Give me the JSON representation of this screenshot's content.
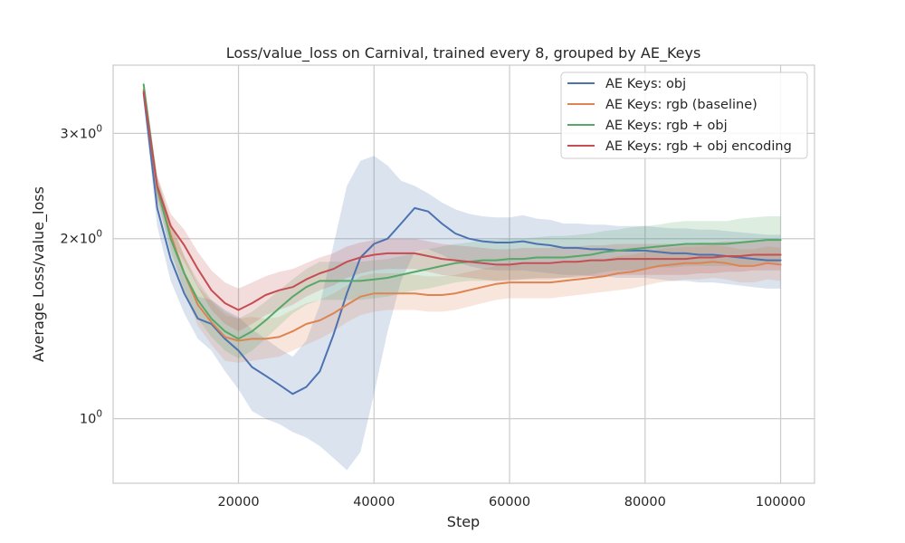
{
  "chart_data": {
    "type": "line",
    "title": "Loss/value_loss on Carnival, trained every 8, grouped by AE_Keys",
    "xlabel": "Step",
    "ylabel": "Average Loss/value_loss",
    "yscale": "log",
    "xlim": [
      1500,
      105000
    ],
    "ylim": [
      0.78,
      3.9
    ],
    "grid": true,
    "legend_position": "top-right",
    "x_ticks": [
      20000,
      40000,
      60000,
      80000,
      100000
    ],
    "x_tick_labels": [
      "20000",
      "40000",
      "60000",
      "80000",
      "100000"
    ],
    "y_ticks": [
      {
        "value": 1,
        "base": "10",
        "exp": "0"
      },
      {
        "value": 2,
        "base": "2×10",
        "exp": "0"
      },
      {
        "value": 3,
        "base": "3×10",
        "exp": "0"
      }
    ],
    "x": [
      6000,
      8000,
      10000,
      12000,
      14000,
      16000,
      18000,
      20000,
      22000,
      24000,
      26000,
      28000,
      30000,
      32000,
      34000,
      36000,
      38000,
      40000,
      42000,
      44000,
      46000,
      48000,
      50000,
      52000,
      54000,
      56000,
      58000,
      60000,
      62000,
      64000,
      66000,
      68000,
      70000,
      72000,
      74000,
      76000,
      78000,
      80000,
      82000,
      84000,
      86000,
      88000,
      90000,
      92000,
      94000,
      96000,
      98000,
      100000
    ],
    "series": [
      {
        "name": "AE Keys: obj",
        "color": "#4c72b0",
        "values": [
          3.5,
          2.25,
          1.85,
          1.62,
          1.47,
          1.44,
          1.36,
          1.3,
          1.22,
          1.18,
          1.14,
          1.1,
          1.13,
          1.2,
          1.38,
          1.62,
          1.86,
          1.96,
          2.0,
          2.12,
          2.25,
          2.22,
          2.12,
          2.04,
          2.0,
          1.98,
          1.97,
          1.97,
          1.98,
          1.96,
          1.95,
          1.93,
          1.93,
          1.92,
          1.92,
          1.91,
          1.91,
          1.91,
          1.9,
          1.89,
          1.89,
          1.88,
          1.88,
          1.87,
          1.86,
          1.85,
          1.84,
          1.84
        ],
        "lower": [
          3.4,
          2.1,
          1.7,
          1.5,
          1.36,
          1.3,
          1.2,
          1.12,
          1.03,
          1.0,
          0.98,
          0.95,
          0.93,
          0.9,
          0.86,
          0.82,
          0.88,
          1.1,
          1.4,
          1.7,
          1.9,
          1.92,
          1.88,
          1.83,
          1.8,
          1.78,
          1.77,
          1.77,
          1.77,
          1.76,
          1.75,
          1.74,
          1.74,
          1.73,
          1.73,
          1.72,
          1.72,
          1.72,
          1.71,
          1.7,
          1.7,
          1.69,
          1.69,
          1.68,
          1.67,
          1.66,
          1.65,
          1.65
        ],
        "upper": [
          3.6,
          2.4,
          2.0,
          1.75,
          1.6,
          1.58,
          1.52,
          1.48,
          1.41,
          1.36,
          1.31,
          1.27,
          1.35,
          1.55,
          1.95,
          2.45,
          2.7,
          2.75,
          2.65,
          2.5,
          2.45,
          2.38,
          2.3,
          2.24,
          2.2,
          2.18,
          2.17,
          2.17,
          2.19,
          2.16,
          2.15,
          2.12,
          2.12,
          2.11,
          2.11,
          2.1,
          2.1,
          2.1,
          2.09,
          2.08,
          2.08,
          2.07,
          2.07,
          2.06,
          2.05,
          2.04,
          2.03,
          2.03
        ]
      },
      {
        "name": "AE Keys: rgb (baseline)",
        "color": "#dd8452",
        "values": [
          3.55,
          2.42,
          2.03,
          1.75,
          1.55,
          1.45,
          1.37,
          1.35,
          1.36,
          1.36,
          1.37,
          1.4,
          1.44,
          1.46,
          1.5,
          1.55,
          1.6,
          1.62,
          1.62,
          1.62,
          1.62,
          1.61,
          1.61,
          1.62,
          1.64,
          1.66,
          1.68,
          1.69,
          1.69,
          1.69,
          1.69,
          1.7,
          1.71,
          1.72,
          1.73,
          1.75,
          1.76,
          1.78,
          1.8,
          1.81,
          1.82,
          1.82,
          1.83,
          1.82,
          1.8,
          1.8,
          1.82,
          1.81
        ],
        "lower": [
          3.45,
          2.32,
          1.92,
          1.63,
          1.43,
          1.33,
          1.25,
          1.24,
          1.25,
          1.26,
          1.27,
          1.3,
          1.33,
          1.36,
          1.4,
          1.45,
          1.49,
          1.51,
          1.52,
          1.52,
          1.52,
          1.51,
          1.51,
          1.52,
          1.54,
          1.56,
          1.58,
          1.59,
          1.59,
          1.59,
          1.59,
          1.6,
          1.61,
          1.62,
          1.63,
          1.64,
          1.65,
          1.67,
          1.69,
          1.7,
          1.71,
          1.71,
          1.72,
          1.71,
          1.69,
          1.69,
          1.71,
          1.7
        ],
        "upper": [
          3.65,
          2.52,
          2.14,
          1.87,
          1.67,
          1.57,
          1.49,
          1.47,
          1.48,
          1.47,
          1.48,
          1.52,
          1.56,
          1.58,
          1.62,
          1.67,
          1.73,
          1.75,
          1.75,
          1.75,
          1.74,
          1.73,
          1.73,
          1.74,
          1.76,
          1.78,
          1.8,
          1.81,
          1.81,
          1.81,
          1.81,
          1.82,
          1.83,
          1.84,
          1.85,
          1.87,
          1.88,
          1.9,
          1.92,
          1.93,
          1.94,
          1.94,
          1.95,
          1.94,
          1.92,
          1.92,
          1.94,
          1.93
        ]
      },
      {
        "name": "AE Keys: rgb + obj",
        "color": "#55a868",
        "values": [
          3.62,
          2.44,
          2.0,
          1.75,
          1.58,
          1.47,
          1.4,
          1.36,
          1.4,
          1.46,
          1.53,
          1.6,
          1.66,
          1.7,
          1.7,
          1.7,
          1.7,
          1.71,
          1.72,
          1.74,
          1.76,
          1.78,
          1.8,
          1.82,
          1.83,
          1.84,
          1.84,
          1.85,
          1.85,
          1.86,
          1.86,
          1.86,
          1.87,
          1.88,
          1.9,
          1.91,
          1.92,
          1.93,
          1.94,
          1.95,
          1.96,
          1.96,
          1.96,
          1.96,
          1.97,
          1.98,
          1.99,
          1.99
        ],
        "lower": [
          3.52,
          2.34,
          1.89,
          1.64,
          1.47,
          1.37,
          1.3,
          1.26,
          1.3,
          1.36,
          1.43,
          1.5,
          1.55,
          1.58,
          1.58,
          1.58,
          1.58,
          1.59,
          1.6,
          1.62,
          1.64,
          1.65,
          1.67,
          1.69,
          1.7,
          1.7,
          1.7,
          1.71,
          1.71,
          1.72,
          1.72,
          1.72,
          1.73,
          1.74,
          1.76,
          1.77,
          1.77,
          1.78,
          1.79,
          1.79,
          1.8,
          1.8,
          1.8,
          1.8,
          1.8,
          1.81,
          1.82,
          1.82
        ],
        "upper": [
          3.72,
          2.55,
          2.12,
          1.87,
          1.7,
          1.58,
          1.51,
          1.47,
          1.51,
          1.57,
          1.64,
          1.71,
          1.78,
          1.83,
          1.83,
          1.83,
          1.83,
          1.84,
          1.85,
          1.87,
          1.89,
          1.92,
          1.94,
          1.96,
          1.97,
          1.99,
          1.99,
          2.0,
          2.0,
          2.01,
          2.02,
          2.02,
          2.03,
          2.04,
          2.06,
          2.07,
          2.09,
          2.1,
          2.11,
          2.13,
          2.14,
          2.14,
          2.14,
          2.14,
          2.16,
          2.17,
          2.18,
          2.18
        ]
      },
      {
        "name": "AE Keys: rgb + obj encoding",
        "color": "#c44e52",
        "values": [
          3.52,
          2.45,
          2.1,
          1.95,
          1.78,
          1.64,
          1.56,
          1.52,
          1.56,
          1.61,
          1.64,
          1.66,
          1.71,
          1.75,
          1.78,
          1.83,
          1.86,
          1.88,
          1.89,
          1.89,
          1.89,
          1.87,
          1.85,
          1.84,
          1.83,
          1.82,
          1.81,
          1.81,
          1.82,
          1.82,
          1.82,
          1.83,
          1.83,
          1.84,
          1.84,
          1.85,
          1.85,
          1.85,
          1.85,
          1.85,
          1.85,
          1.86,
          1.86,
          1.87,
          1.87,
          1.88,
          1.88,
          1.88
        ],
        "lower": [
          3.42,
          2.35,
          2.0,
          1.83,
          1.66,
          1.52,
          1.44,
          1.4,
          1.44,
          1.49,
          1.52,
          1.55,
          1.6,
          1.64,
          1.67,
          1.72,
          1.75,
          1.77,
          1.78,
          1.78,
          1.78,
          1.76,
          1.74,
          1.73,
          1.72,
          1.71,
          1.7,
          1.7,
          1.71,
          1.71,
          1.71,
          1.72,
          1.72,
          1.73,
          1.73,
          1.74,
          1.74,
          1.74,
          1.74,
          1.74,
          1.74,
          1.75,
          1.75,
          1.76,
          1.76,
          1.77,
          1.77,
          1.77
        ],
        "upper": [
          3.62,
          2.55,
          2.2,
          2.07,
          1.9,
          1.77,
          1.69,
          1.65,
          1.69,
          1.73,
          1.76,
          1.78,
          1.82,
          1.86,
          1.89,
          1.94,
          1.97,
          1.99,
          2.0,
          2.0,
          2.0,
          1.98,
          1.96,
          1.95,
          1.94,
          1.93,
          1.92,
          1.92,
          1.93,
          1.93,
          1.93,
          1.94,
          1.94,
          1.95,
          1.95,
          1.96,
          1.96,
          1.96,
          1.96,
          1.96,
          1.96,
          1.97,
          1.97,
          1.98,
          1.98,
          1.99,
          1.99,
          1.99
        ]
      }
    ]
  }
}
